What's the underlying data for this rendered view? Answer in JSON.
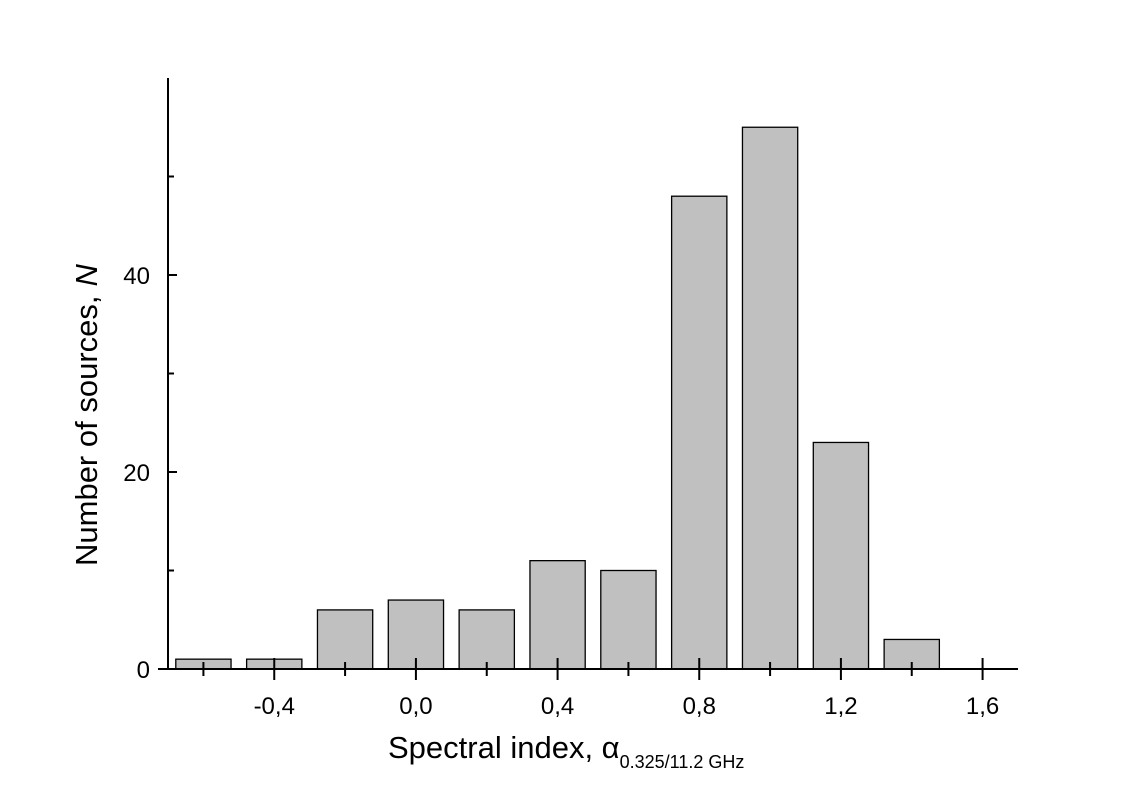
{
  "chart_data": {
    "type": "histogram",
    "bins": [
      -0.7,
      -0.5,
      -0.3,
      -0.1,
      0.1,
      0.3,
      0.5,
      0.7,
      0.9,
      1.1,
      1.3,
      1.5
    ],
    "values": [
      1,
      1,
      6,
      7,
      6,
      11,
      10,
      48,
      55,
      23,
      3
    ],
    "color": "#c0c0c0",
    "xlabel": "Spectral index, α",
    "xlabel_subscript": "0.325/11.2 GHz",
    "ylabel": "Number of sources,",
    "ylabel_italic": "N",
    "xlim": [
      -0.7,
      1.7
    ],
    "xticks": [
      {
        "value": -0.4,
        "label": "-0,4"
      },
      {
        "value": 0.0,
        "label": "0,0"
      },
      {
        "value": 0.4,
        "label": "0,4"
      },
      {
        "value": 0.8,
        "label": "0,8"
      },
      {
        "value": 1.2,
        "label": "1,2"
      },
      {
        "value": 1.6,
        "label": "1,6"
      }
    ],
    "xminorticks": [
      -0.6,
      -0.2,
      0.2,
      0.6,
      1.0,
      1.4
    ],
    "ylim": [
      0,
      60
    ],
    "yticks": [
      0,
      20,
      40
    ],
    "yminorticks": [
      10,
      30,
      50
    ]
  }
}
